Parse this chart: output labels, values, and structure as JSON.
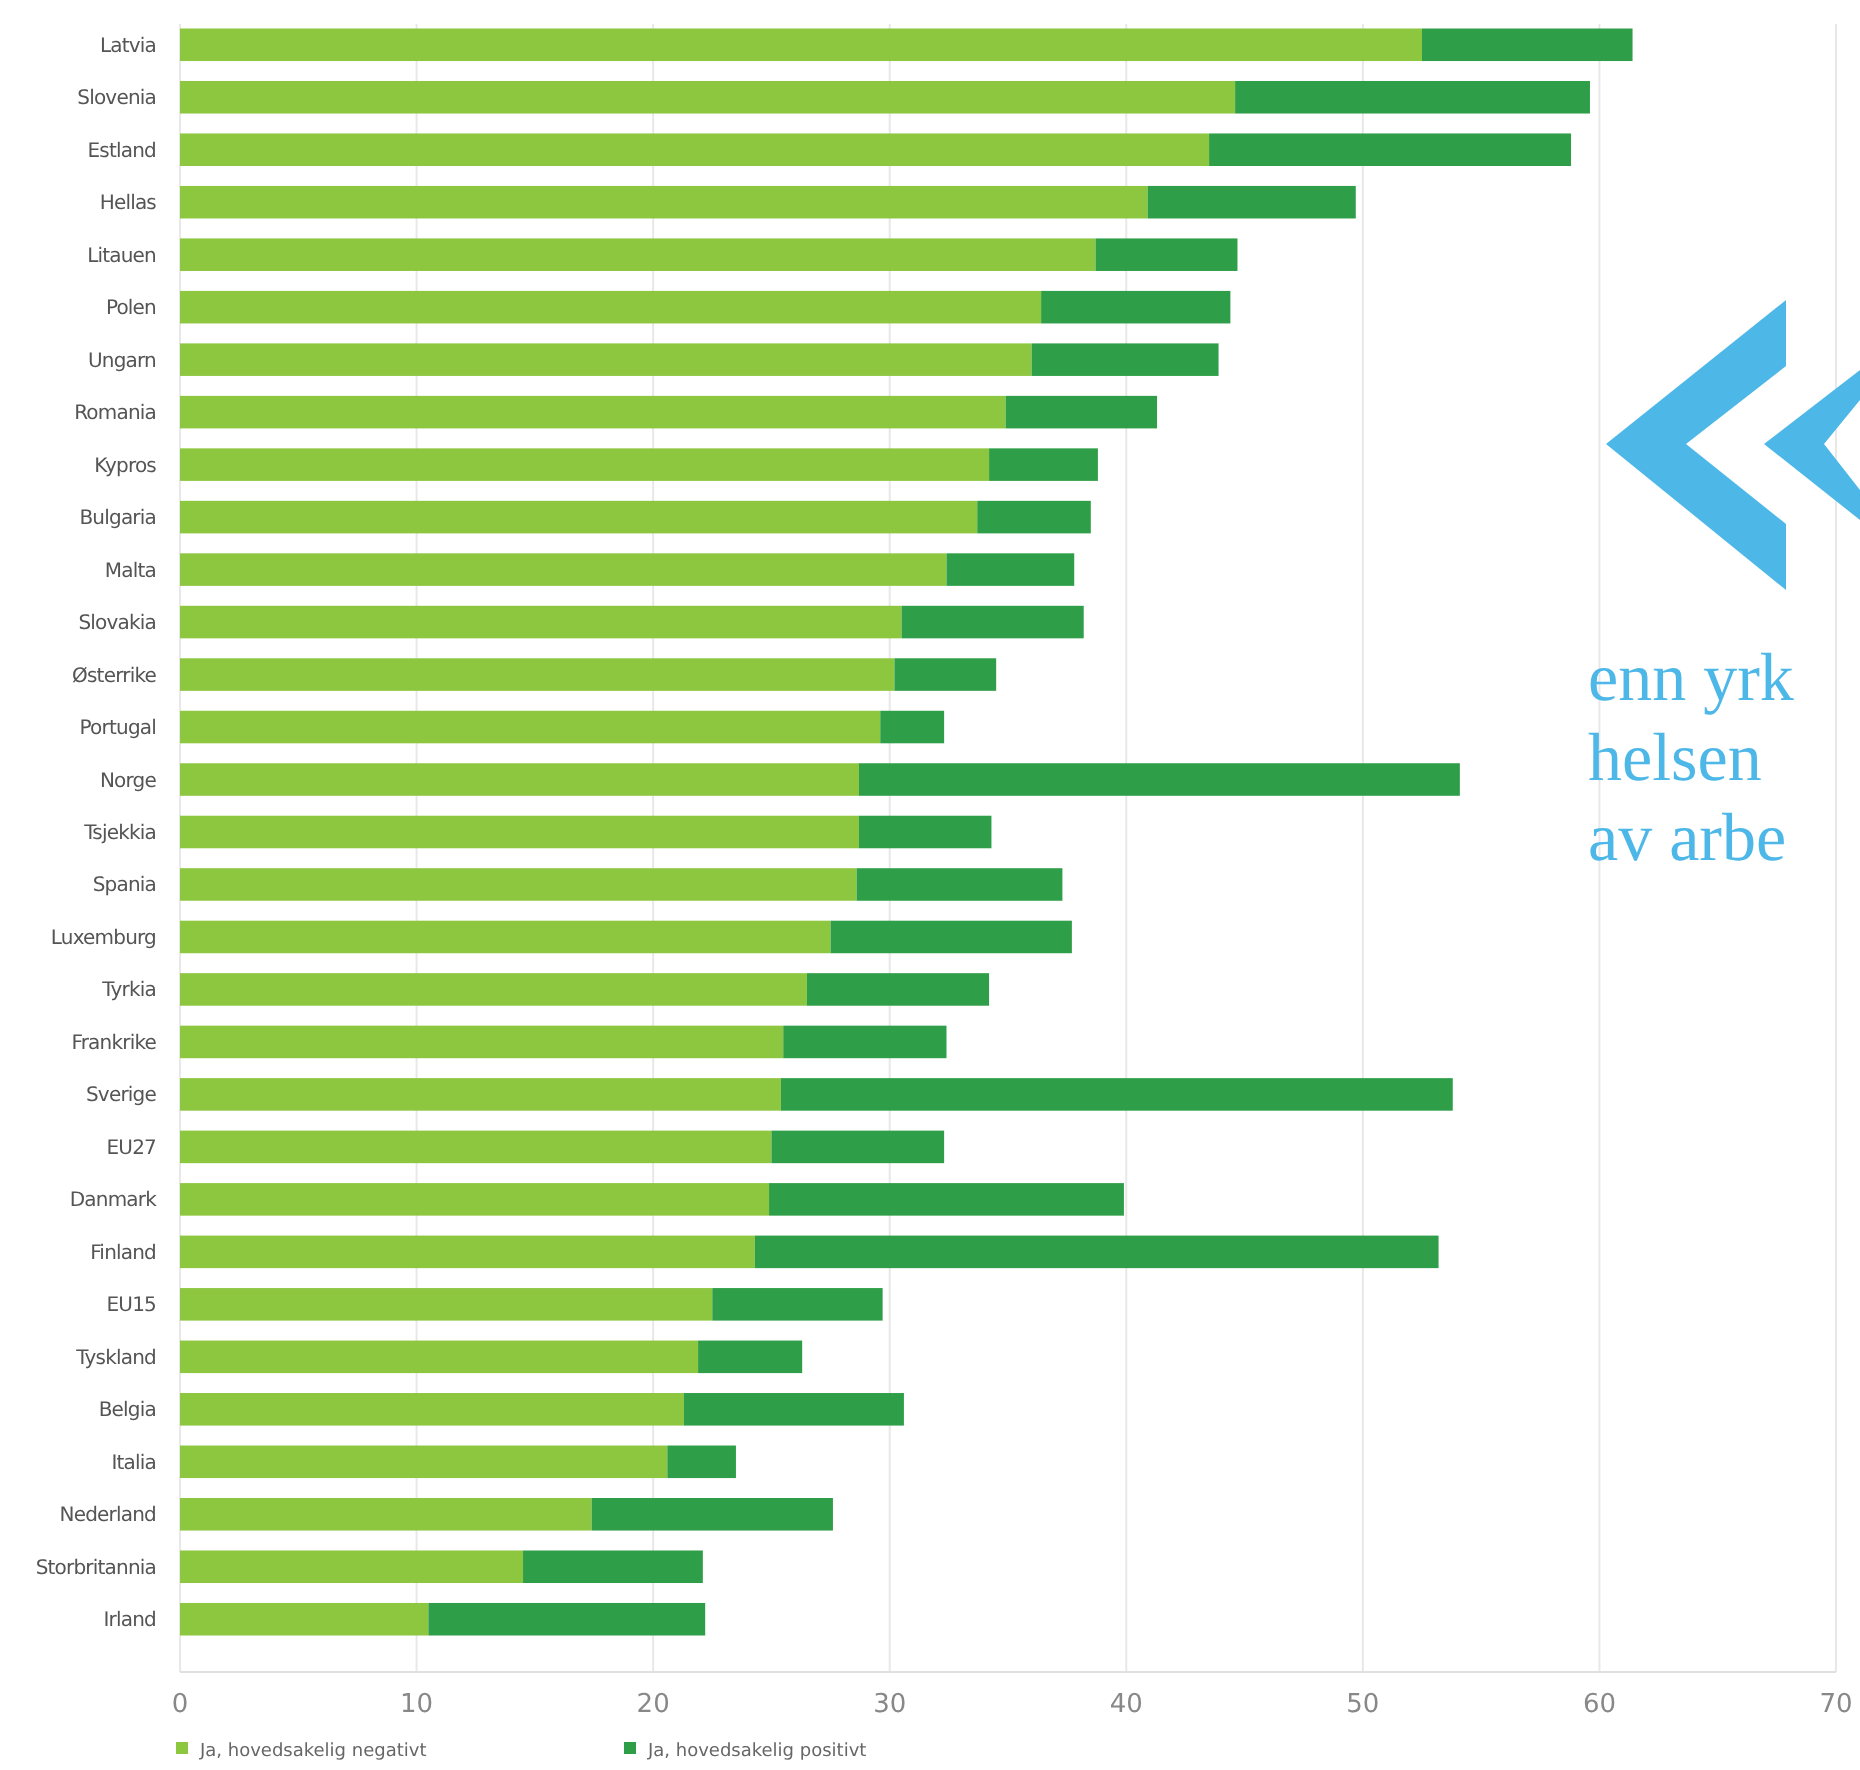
{
  "chart_data": {
    "type": "bar",
    "orientation": "horizontal",
    "stacked": true,
    "categories": [
      "Latvia",
      "Slovenia",
      "Estland",
      "Hellas",
      "Litauen",
      "Polen",
      "Ungarn",
      "Romania",
      "Kypros",
      "Bulgaria",
      "Malta",
      "Slovakia",
      "Østerrike",
      "Portugal",
      "Norge",
      "Tsjekkia",
      "Spania",
      "Luxemburg",
      "Tyrkia",
      "Frankrike",
      "Sverige",
      "EU27",
      "Danmark",
      "Finland",
      "EU15",
      "Tyskland",
      "Belgia",
      "Italia",
      "Nederland",
      "Storbritannia",
      "Irland"
    ],
    "series": [
      {
        "name": "Ja, hovedsakelig negativt",
        "color": "#8dc63f",
        "values": [
          52.5,
          44.6,
          43.5,
          40.9,
          38.7,
          36.4,
          36.0,
          34.9,
          34.2,
          33.7,
          32.4,
          30.5,
          30.2,
          29.6,
          28.7,
          28.7,
          28.6,
          27.5,
          26.5,
          25.5,
          25.4,
          25.0,
          24.9,
          24.3,
          22.5,
          21.9,
          21.3,
          20.6,
          17.4,
          14.5,
          10.5
        ]
      },
      {
        "name": "Ja, hovedsakelig positivt",
        "color": "#2e9e48",
        "values": [
          8.9,
          15.0,
          15.3,
          8.8,
          6.0,
          8.0,
          7.9,
          6.4,
          4.6,
          4.8,
          5.4,
          7.7,
          4.3,
          2.7,
          25.4,
          5.6,
          8.7,
          10.2,
          7.7,
          6.9,
          28.4,
          7.3,
          15.0,
          28.9,
          7.2,
          4.4,
          9.3,
          2.9,
          10.2,
          7.6,
          11.7
        ]
      }
    ],
    "xlim": [
      0,
      70
    ],
    "xticks": [
      0,
      10,
      20,
      30,
      40,
      50,
      60,
      70
    ],
    "grid": "x",
    "legend": "bottom left",
    "annotations": [
      "enn yrk",
      "helsen",
      "av arbe"
    ]
  }
}
